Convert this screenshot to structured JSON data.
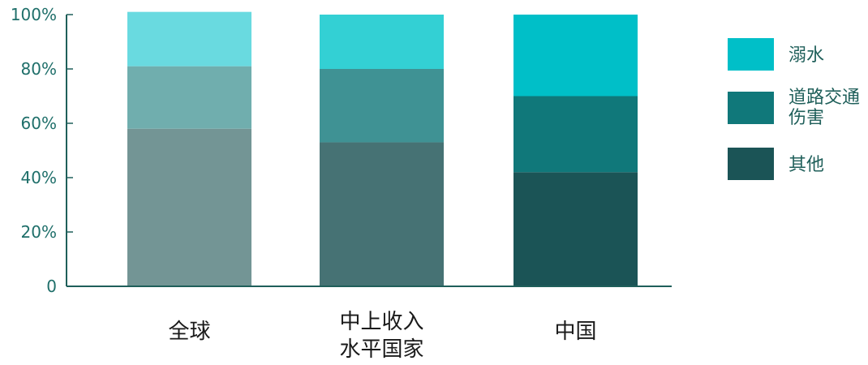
{
  "chart_data": {
    "type": "bar",
    "stacked": true,
    "percent": true,
    "categories": [
      [
        "全球"
      ],
      [
        "中上收入",
        "水平国家"
      ],
      [
        "中国"
      ]
    ],
    "series": [
      {
        "name": "其他",
        "values": [
          58,
          53,
          42
        ],
        "colors": [
          "#739595",
          "#467274",
          "#1b5456"
        ]
      },
      {
        "name": "道路交通伤害",
        "legend_lines": [
          "道路交通",
          "伤害"
        ],
        "values": [
          23,
          27,
          28
        ],
        "colors": [
          "#70aeae",
          "#3f9294",
          "#10787a"
        ]
      },
      {
        "name": "溺水",
        "values": [
          20,
          20,
          30
        ],
        "colors": [
          "#69dae0",
          "#33d0d4",
          "#00bfc8"
        ]
      }
    ],
    "ylim": [
      0,
      100
    ],
    "yticks": [
      "0",
      "20%",
      "40%",
      "60%",
      "80%",
      "100%"
    ],
    "legend_position": "right",
    "legend_order": [
      "溺水",
      "道路交通伤害",
      "其他"
    ],
    "legend_colors": {
      "溺水": "#00bfc8",
      "道路交通伤害": "#10787a",
      "其他": "#1b5456"
    },
    "axis_color": "#1f5f5a"
  }
}
